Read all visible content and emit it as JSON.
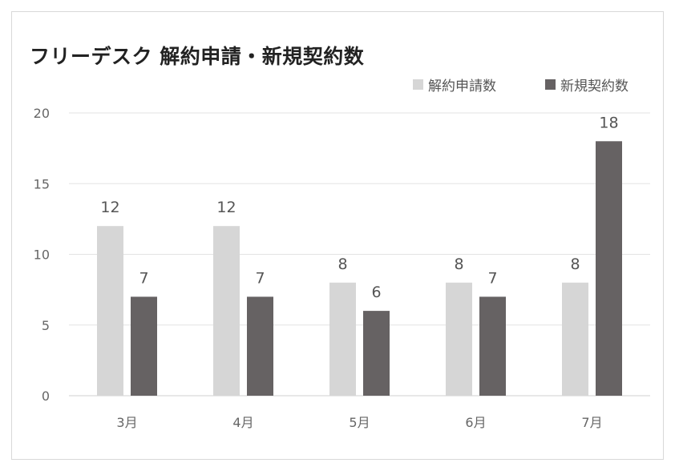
{
  "chart_data": {
    "type": "bar",
    "title": "フリーデスク 解約申請・新規契約数",
    "xlabel": "",
    "ylabel": "",
    "categories": [
      "3月",
      "4月",
      "5月",
      "6月",
      "7月"
    ],
    "series": [
      {
        "name": "解約申請数",
        "values": [
          12,
          12,
          8,
          8,
          8
        ],
        "color": "#d6d6d6"
      },
      {
        "name": "新規契約数",
        "values": [
          7,
          7,
          6,
          7,
          18
        ],
        "color": "#666263"
      }
    ],
    "ylim": [
      0,
      20
    ],
    "yticks": [
      0,
      5,
      10,
      15,
      20
    ],
    "grid": true,
    "legend": "top-right",
    "data_labels": true,
    "colors": {
      "gridline": "#e3e3e3",
      "axis": "#d0d0d0"
    }
  }
}
